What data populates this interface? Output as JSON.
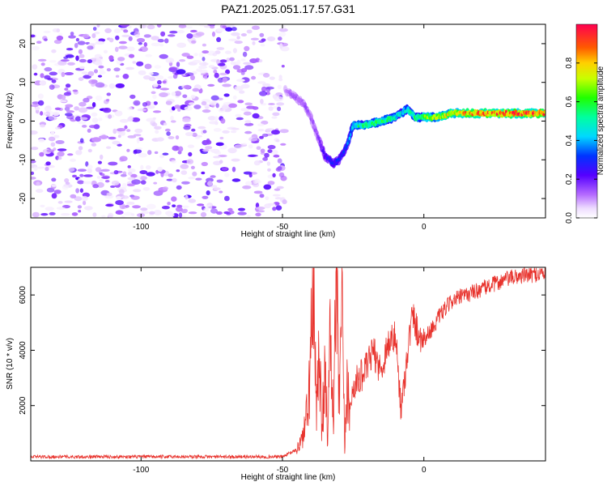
{
  "title": "PAZ1.2025.051.17.57.G31",
  "chart_data": [
    {
      "type": "heatmap",
      "xlabel": "Height of straight line (km)",
      "ylabel": "Frequency (Hz)",
      "xlim": [
        -139,
        43
      ],
      "ylim": [
        -25,
        25
      ],
      "xticks": [
        -100,
        -50,
        0
      ],
      "yticks": [
        -20,
        -10,
        0,
        10,
        20
      ],
      "colorbar": {
        "label": "Normalized spectral amplitude",
        "range": [
          0,
          1
        ],
        "ticks": [
          0.0,
          0.2,
          0.4,
          0.6,
          0.8
        ],
        "tick_labels": [
          "0.0",
          "0.2",
          "0.4",
          "0.6",
          "0.8"
        ]
      },
      "noise_region": {
        "x_start": -139,
        "x_end": -49,
        "amplitude_range": [
          0.02,
          0.12
        ]
      },
      "signal_track": {
        "x": [
          -49,
          -45,
          -42,
          -40,
          -38,
          -35,
          -32,
          -30,
          -27,
          -25,
          -20,
          -15,
          -10,
          -6,
          -3,
          0,
          5,
          10,
          20,
          30,
          43
        ],
        "freq_hz": [
          8,
          6,
          4,
          1,
          -3,
          -9,
          -11,
          -10,
          -6,
          -1,
          -1,
          0,
          1,
          3,
          1,
          1,
          1,
          2,
          2,
          2,
          2
        ],
        "amplitude": [
          0.1,
          0.15,
          0.15,
          0.15,
          0.15,
          0.25,
          0.3,
          0.3,
          0.35,
          0.5,
          0.6,
          0.6,
          0.5,
          0.5,
          0.6,
          0.65,
          0.75,
          0.8,
          0.9,
          0.95,
          0.95
        ]
      }
    },
    {
      "type": "line",
      "xlabel": "Height of straight line (km)",
      "ylabel": "SNR (10 * v/v)",
      "xlim": [
        -139,
        43
      ],
      "ylim": [
        0,
        7000
      ],
      "xticks": [
        -100,
        -50,
        0
      ],
      "yticks": [
        2000,
        4000,
        6000
      ],
      "series": [
        {
          "color": "#e8332d",
          "x": [
            -139,
            -50,
            -45,
            -43,
            -41,
            -40,
            -39,
            -38,
            -37,
            -36,
            -35,
            -34,
            -33,
            -32,
            -31,
            -30,
            -29,
            -28,
            -27,
            -26,
            -25,
            -22,
            -20,
            -18,
            -15,
            -13,
            -10,
            -8,
            -6,
            -4,
            -2,
            0,
            3,
            6,
            10,
            15,
            20,
            25,
            30,
            35,
            40,
            43
          ],
          "y": [
            150,
            150,
            400,
            800,
            1800,
            4000,
            5900,
            1500,
            4500,
            900,
            4000,
            600,
            5000,
            1200,
            6700,
            2000,
            5500,
            400,
            3000,
            1700,
            2700,
            3100,
            3400,
            4000,
            3200,
            4200,
            4500,
            1800,
            3800,
            5300,
            4600,
            4400,
            4800,
            5300,
            5800,
            6000,
            6200,
            6400,
            6600,
            6700,
            6750,
            6800
          ]
        }
      ]
    }
  ]
}
